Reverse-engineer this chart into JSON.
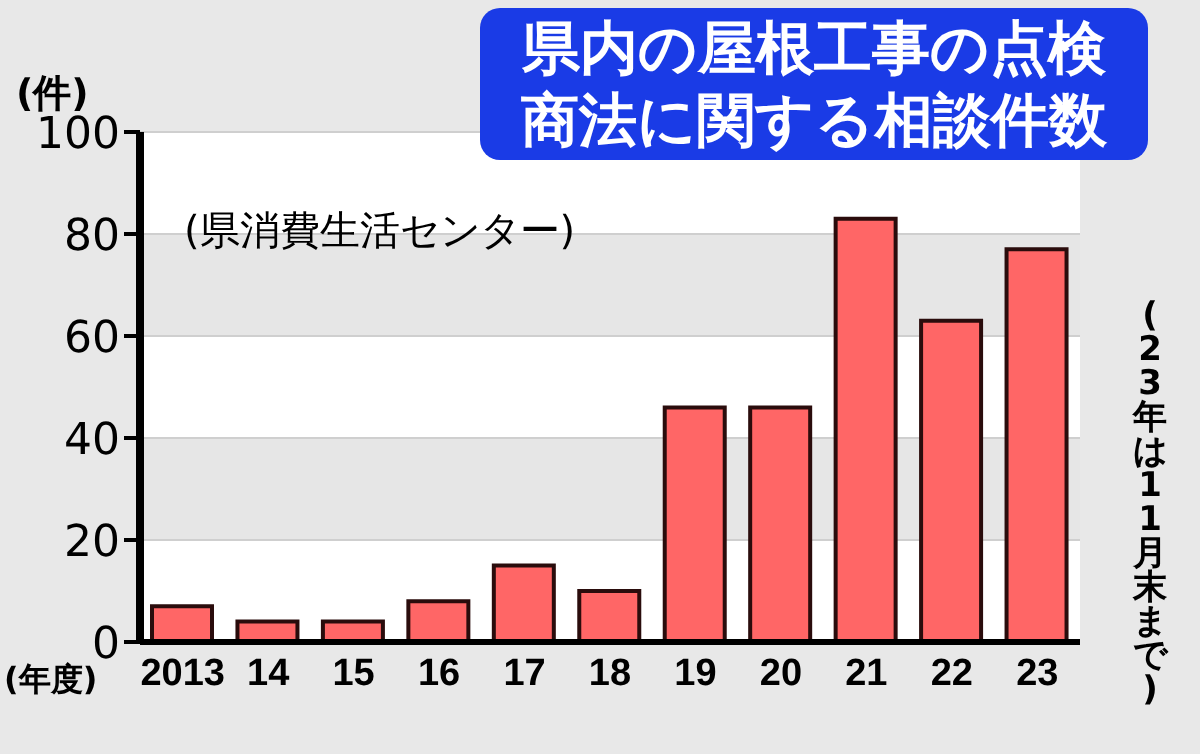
{
  "chart_data": {
    "type": "bar",
    "title": "県内の屋根工事の点検商法に関する相談件数",
    "xlabel": "(年度)",
    "ylabel": "(件)",
    "annotations": [
      "(県消費生活センター)",
      "(23年は11月末まで)"
    ],
    "categories": [
      "2013",
      "14",
      "15",
      "16",
      "17",
      "18",
      "19",
      "20",
      "21",
      "22",
      "23"
    ],
    "values": [
      7,
      4,
      4,
      8,
      15,
      10,
      46,
      46,
      83,
      63,
      77
    ],
    "color": "#ff6666",
    "ylim": [
      0,
      100
    ],
    "yticks": [
      0,
      20,
      40,
      60,
      80,
      100
    ],
    "grid": "y"
  }
}
